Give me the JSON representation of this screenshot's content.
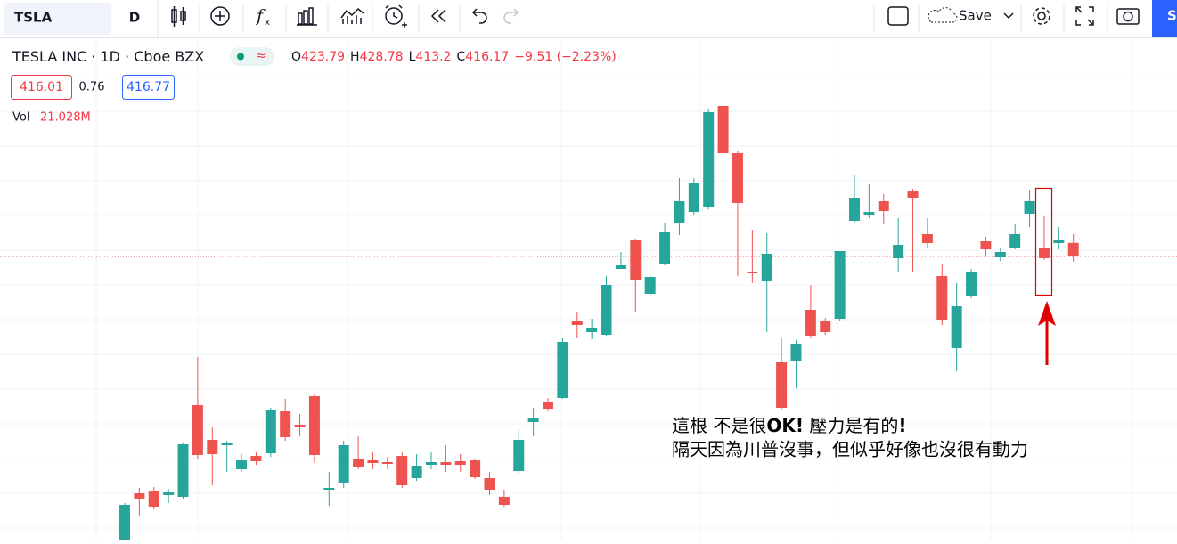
{
  "toolbar": {
    "symbol": "TSLA",
    "interval": "D",
    "save": "Save",
    "cut_button": "S"
  },
  "chart_data": {
    "type": "candlestick",
    "title": "TESLA INC",
    "interval": "1D",
    "exchange": "Cboe BZX",
    "ohlc_letters": [
      "O",
      "H",
      "L",
      "C"
    ],
    "change_label": "−9.51 (−2.23%)",
    "bid": "416.01",
    "spread": "0.76",
    "ask": "416.77",
    "volume_label": "Vol",
    "volume": "21.028M",
    "up_color": "#26a69a",
    "down_color": "#ef5350",
    "grid": true,
    "last_price_line": true,
    "ylim": [
      256.7,
      539.2
    ],
    "open": [
      257.2,
      283.2,
      284.2,
      282.2,
      281.2,
      332.7,
      313.2,
      310.2,
      296.7,
      304.2,
      305.7,
      329.2,
      321.7,
      337.7,
      285.2,
      288.7,
      302.7,
      301.7,
      300.7,
      304.2,
      291.7,
      299.2,
      300.7,
      301.2,
      301.7,
      291.7,
      281.2,
      295.7,
      323.2,
      334.2,
      336.7,
      380.2,
      373.7,
      372.2,
      409.2,
      425.2,
      395.2,
      411.7,
      435.2,
      441.2,
      443.7,
      500.7,
      474.2,
      407.7,
      402.2,
      356.7,
      357.2,
      386.2,
      380.2,
      381.2,
      436.2,
      439.7,
      447.2,
      415.2,
      452.7,
      428.7,
      405.2,
      364.7,
      394.2,
      424.7,
      415.7,
      421.2,
      440.2,
      420.7,
      423.7,
      423.79
    ],
    "high": [
      277.7,
      286.2,
      286.7,
      285.7,
      311.7,
      359.7,
      320.2,
      312.7,
      305.2,
      306.2,
      331.2,
      336.2,
      327.7,
      338.7,
      295.2,
      312.7,
      315.2,
      306.2,
      303.7,
      306.2,
      305.2,
      306.2,
      310.2,
      305.2,
      302.7,
      295.2,
      285.2,
      319.2,
      331.2,
      336.7,
      370.2,
      385.2,
      381.2,
      405.2,
      418.7,
      426.2,
      406.2,
      435.2,
      460.2,
      460.2,
      499.2,
      500.7,
      475.2,
      431.2,
      429.2,
      370.2,
      369.2,
      400.2,
      381.7,
      419.2,
      461.7,
      456.7,
      451.2,
      437.7,
      454.2,
      437.7,
      411.7,
      401.2,
      409.2,
      427.2,
      421.2,
      434.2,
      453.7,
      438.7,
      432.7,
      428.78
    ],
    "low": [
      256.7,
      270.2,
      274.2,
      277.7,
      280.2,
      302.2,
      287.7,
      295.2,
      295.2,
      299.2,
      303.7,
      312.7,
      315.2,
      300.2,
      276.2,
      286.2,
      296.7,
      296.7,
      296.7,
      286.2,
      290.2,
      296.7,
      295.2,
      295.2,
      291.2,
      282.2,
      275.2,
      294.2,
      315.2,
      329.2,
      336.2,
      370.2,
      369.7,
      371.7,
      409.2,
      385.2,
      394.2,
      411.2,
      428.2,
      439.2,
      442.7,
      472.7,
      405.2,
      401.2,
      373.7,
      330.2,
      342.2,
      370.2,
      372.2,
      380.2,
      435.2,
      437.7,
      434.2,
      407.7,
      407.7,
      421.2,
      377.7,
      351.7,
      392.7,
      416.2,
      413.7,
      420.2,
      432.7,
      414.2,
      420.2,
      413.2
    ],
    "close": [
      276.7,
      280.2,
      275.2,
      283.7,
      310.7,
      304.7,
      305.2,
      311.2,
      301.7,
      301.2,
      330.2,
      314.7,
      320.2,
      304.7,
      286.2,
      310.2,
      297.7,
      300.2,
      299.7,
      287.7,
      298.7,
      300.7,
      299.2,
      299.2,
      292.2,
      285.2,
      276.7,
      313.2,
      325.7,
      330.7,
      368.2,
      377.7,
      376.2,
      400.2,
      411.2,
      403.2,
      404.7,
      429.7,
      447.2,
      457.7,
      497.2,
      474.2,
      446.2,
      406.7,
      417.7,
      331.2,
      367.2,
      371.7,
      373.7,
      419.2,
      449.2,
      441.2,
      441.7,
      422.7,
      449.2,
      423.7,
      380.7,
      388.2,
      407.7,
      420.2,
      418.7,
      428.7,
      447.2,
      415.2,
      425.7,
      416.17
    ]
  },
  "annotation": {
    "line1": [
      "這根 不是很",
      "OK!",
      " 壓力是有的",
      "!"
    ],
    "line2": "隔天因為川普沒事，但似乎好像也沒很有動力"
  }
}
